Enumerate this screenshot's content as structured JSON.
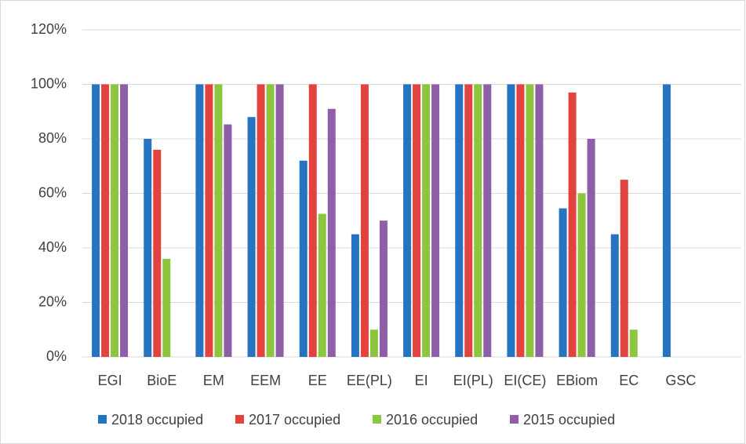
{
  "chart_data": {
    "type": "bar",
    "categories": [
      "EGI",
      "BioE",
      "EM",
      "EEM",
      "EE",
      "EE(PL)",
      "EI",
      "EI(PL)",
      "EI(CE)",
      "EBiom",
      "EC",
      "GSC"
    ],
    "series": [
      {
        "name": "2018 occupied",
        "color": "#2474c1",
        "values": [
          100,
          80,
          100,
          88,
          72,
          45,
          100,
          100,
          100,
          54.5,
          45,
          100
        ]
      },
      {
        "name": "2017 occupied",
        "color": "#e2433f",
        "values": [
          100,
          76,
          100,
          100,
          100,
          100,
          100,
          100,
          100,
          97,
          65,
          0
        ]
      },
      {
        "name": "2016 occupied",
        "color": "#8cc63f",
        "values": [
          100,
          36,
          100,
          100,
          52.5,
          10,
          100,
          100,
          100,
          60,
          10,
          0
        ]
      },
      {
        "name": "2015 occupied",
        "color": "#8e5ea8",
        "values": [
          100,
          0,
          85.3,
          100,
          91,
          50,
          100,
          100,
          100,
          80,
          0,
          0
        ]
      }
    ],
    "ylim": [
      0,
      120
    ],
    "yticks": [
      {
        "value": 0,
        "label": "0%"
      },
      {
        "value": 20,
        "label": "20%"
      },
      {
        "value": 40,
        "label": "40%"
      },
      {
        "value": 60,
        "label": "60%"
      },
      {
        "value": 80,
        "label": "80%"
      },
      {
        "value": 100,
        "label": "100%"
      },
      {
        "value": 120,
        "label": "120%"
      }
    ],
    "grid": true,
    "legend": "bottom"
  }
}
